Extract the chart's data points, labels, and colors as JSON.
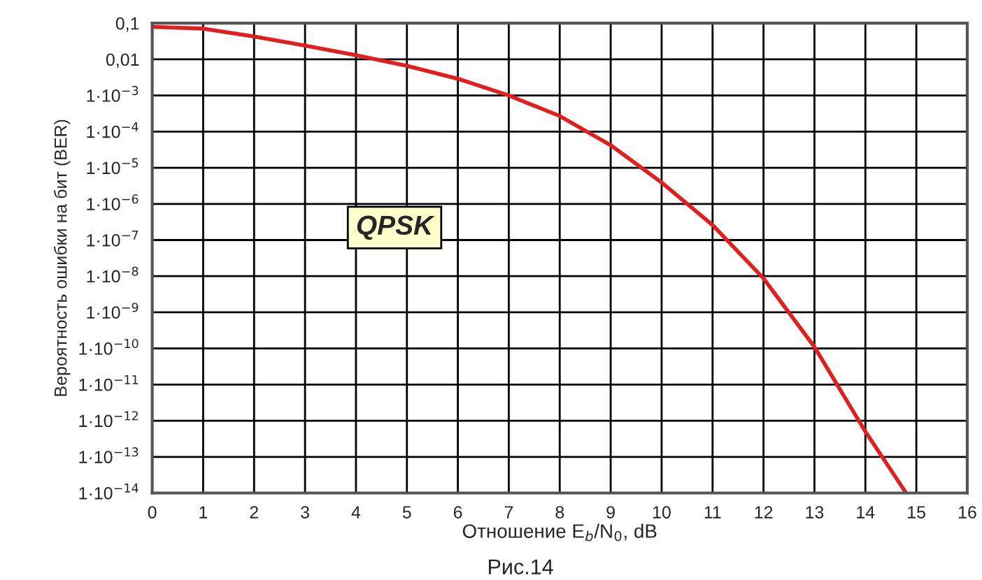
{
  "chart_data": {
    "type": "line",
    "xlabel": "Отношение E$_{b}$/N$_{0}$, dB",
    "ylabel": "Вероятность ошибки на бит (BER)",
    "annotations": [
      "QPSK",
      "Рис.14"
    ],
    "x": [
      0,
      1,
      2,
      3,
      4,
      5,
      6,
      7,
      8,
      9,
      10,
      11,
      12,
      13,
      14,
      14.8
    ],
    "series": [
      {
        "color": "#e02020",
        "values": [
          0.079,
          0.071,
          0.043,
          0.024,
          0.013,
          0.0066,
          0.0029,
          0.001,
          0.00027,
          4.2e-05,
          3.9e-06,
          2.6e-07,
          8.7e-09,
          1.1e-10,
          5e-13,
          1e-14
        ]
      }
    ],
    "log": "y",
    "grid": true,
    "marker": "none",
    "line_style": "solid",
    "xlim": [
      0,
      16
    ],
    "xticks": [
      0,
      1,
      2,
      3,
      4,
      5,
      6,
      7,
      8,
      9,
      10,
      11,
      12,
      13,
      14,
      15,
      16
    ],
    "ylim": [
      1e-14,
      0.1
    ],
    "yticks": [
      {
        "value": 0.1,
        "label": "0,1"
      },
      {
        "value": 0.01,
        "label": "0,01"
      },
      {
        "value": 0.001,
        "label": "1·10$^{−3}$"
      },
      {
        "value": 0.0001,
        "label": "1·10$^{−4}$"
      },
      {
        "value": 1e-05,
        "label": "1·10$^{−5}$"
      },
      {
        "value": 1e-06,
        "label": "1·10$^{−6}$"
      },
      {
        "value": 1e-07,
        "label": "1·10$^{−7}$"
      },
      {
        "value": 1e-08,
        "label": "1·10$^{−8}$"
      },
      {
        "value": 1e-09,
        "label": "1·10$^{−9}$"
      },
      {
        "value": 1e-10,
        "label": "1·10$^{−10}$"
      },
      {
        "value": 1e-11,
        "label": "1·10$^{−11}$"
      },
      {
        "value": 1e-12,
        "label": "1·10$^{−12}$"
      },
      {
        "value": 1e-13,
        "label": "1·10$^{−13}$"
      },
      {
        "value": 1e-14,
        "label": "1·10$^{−14}$"
      }
    ]
  }
}
